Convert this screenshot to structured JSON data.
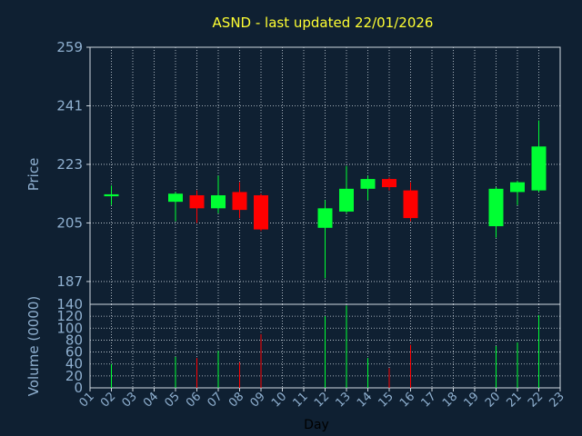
{
  "chart_data": {
    "type": "candlestick",
    "title": "ASND - last updated 22/01/2026",
    "price_panel": {
      "ylabel": "Price",
      "ylim": [
        180,
        259
      ],
      "yticks": [
        187,
        205,
        223,
        241,
        259
      ],
      "grid": true
    },
    "volume_panel": {
      "ylabel": "Volume (0000)",
      "ylim": [
        0,
        140
      ],
      "yticks": [
        0,
        20,
        40,
        60,
        80,
        100,
        120,
        140
      ],
      "grid": true
    },
    "xlabel": "Day",
    "x_ticks": [
      "01",
      "02",
      "03",
      "04",
      "05",
      "06",
      "07",
      "08",
      "09",
      "10",
      "11",
      "12",
      "13",
      "14",
      "15",
      "16",
      "17",
      "18",
      "19",
      "20",
      "21",
      "22",
      "23"
    ],
    "candles": [
      {
        "day": "02",
        "open": 213.2,
        "high": 216.5,
        "low": 210.5,
        "close": 213.8,
        "volume": 40
      },
      {
        "day": "05",
        "open": 211.5,
        "high": 214.5,
        "low": 205.5,
        "close": 214.0,
        "volume": 52
      },
      {
        "day": "06",
        "open": 213.5,
        "high": 215.0,
        "low": 205.0,
        "close": 209.5,
        "volume": 50
      },
      {
        "day": "07",
        "open": 209.5,
        "high": 219.5,
        "low": 208.0,
        "close": 213.5,
        "volume": 62
      },
      {
        "day": "08",
        "open": 214.5,
        "high": 217.5,
        "low": 206.5,
        "close": 209.0,
        "volume": 43
      },
      {
        "day": "09",
        "open": 213.5,
        "high": 214.0,
        "low": 202.5,
        "close": 203.0,
        "volume": 90
      },
      {
        "day": "12",
        "open": 203.5,
        "high": 212.0,
        "low": 188.0,
        "close": 209.5,
        "volume": 120
      },
      {
        "day": "13",
        "open": 208.5,
        "high": 222.5,
        "low": 208.0,
        "close": 215.5,
        "volume": 138
      },
      {
        "day": "14",
        "open": 215.5,
        "high": 219.5,
        "low": 212.0,
        "close": 218.5,
        "volume": 50
      },
      {
        "day": "15",
        "open": 218.5,
        "high": 219.0,
        "low": 215.0,
        "close": 216.0,
        "volume": 33
      },
      {
        "day": "16",
        "open": 215.0,
        "high": 217.5,
        "low": 205.5,
        "close": 206.5,
        "volume": 72
      },
      {
        "day": "20",
        "open": 204.0,
        "high": 216.0,
        "low": 200.5,
        "close": 215.5,
        "volume": 70
      },
      {
        "day": "21",
        "open": 214.5,
        "high": 218.0,
        "low": 210.5,
        "close": 217.5,
        "volume": 76
      },
      {
        "day": "22",
        "open": 215.0,
        "high": 236.5,
        "low": 214.5,
        "close": 228.5,
        "volume": 122
      }
    ],
    "colors": {
      "background": "#0f2032",
      "up": "#00ff33",
      "down": "#ff0000",
      "axis_text": "#8fb0d0",
      "title": "#ffff33",
      "grid": "#cfd8e0"
    }
  }
}
